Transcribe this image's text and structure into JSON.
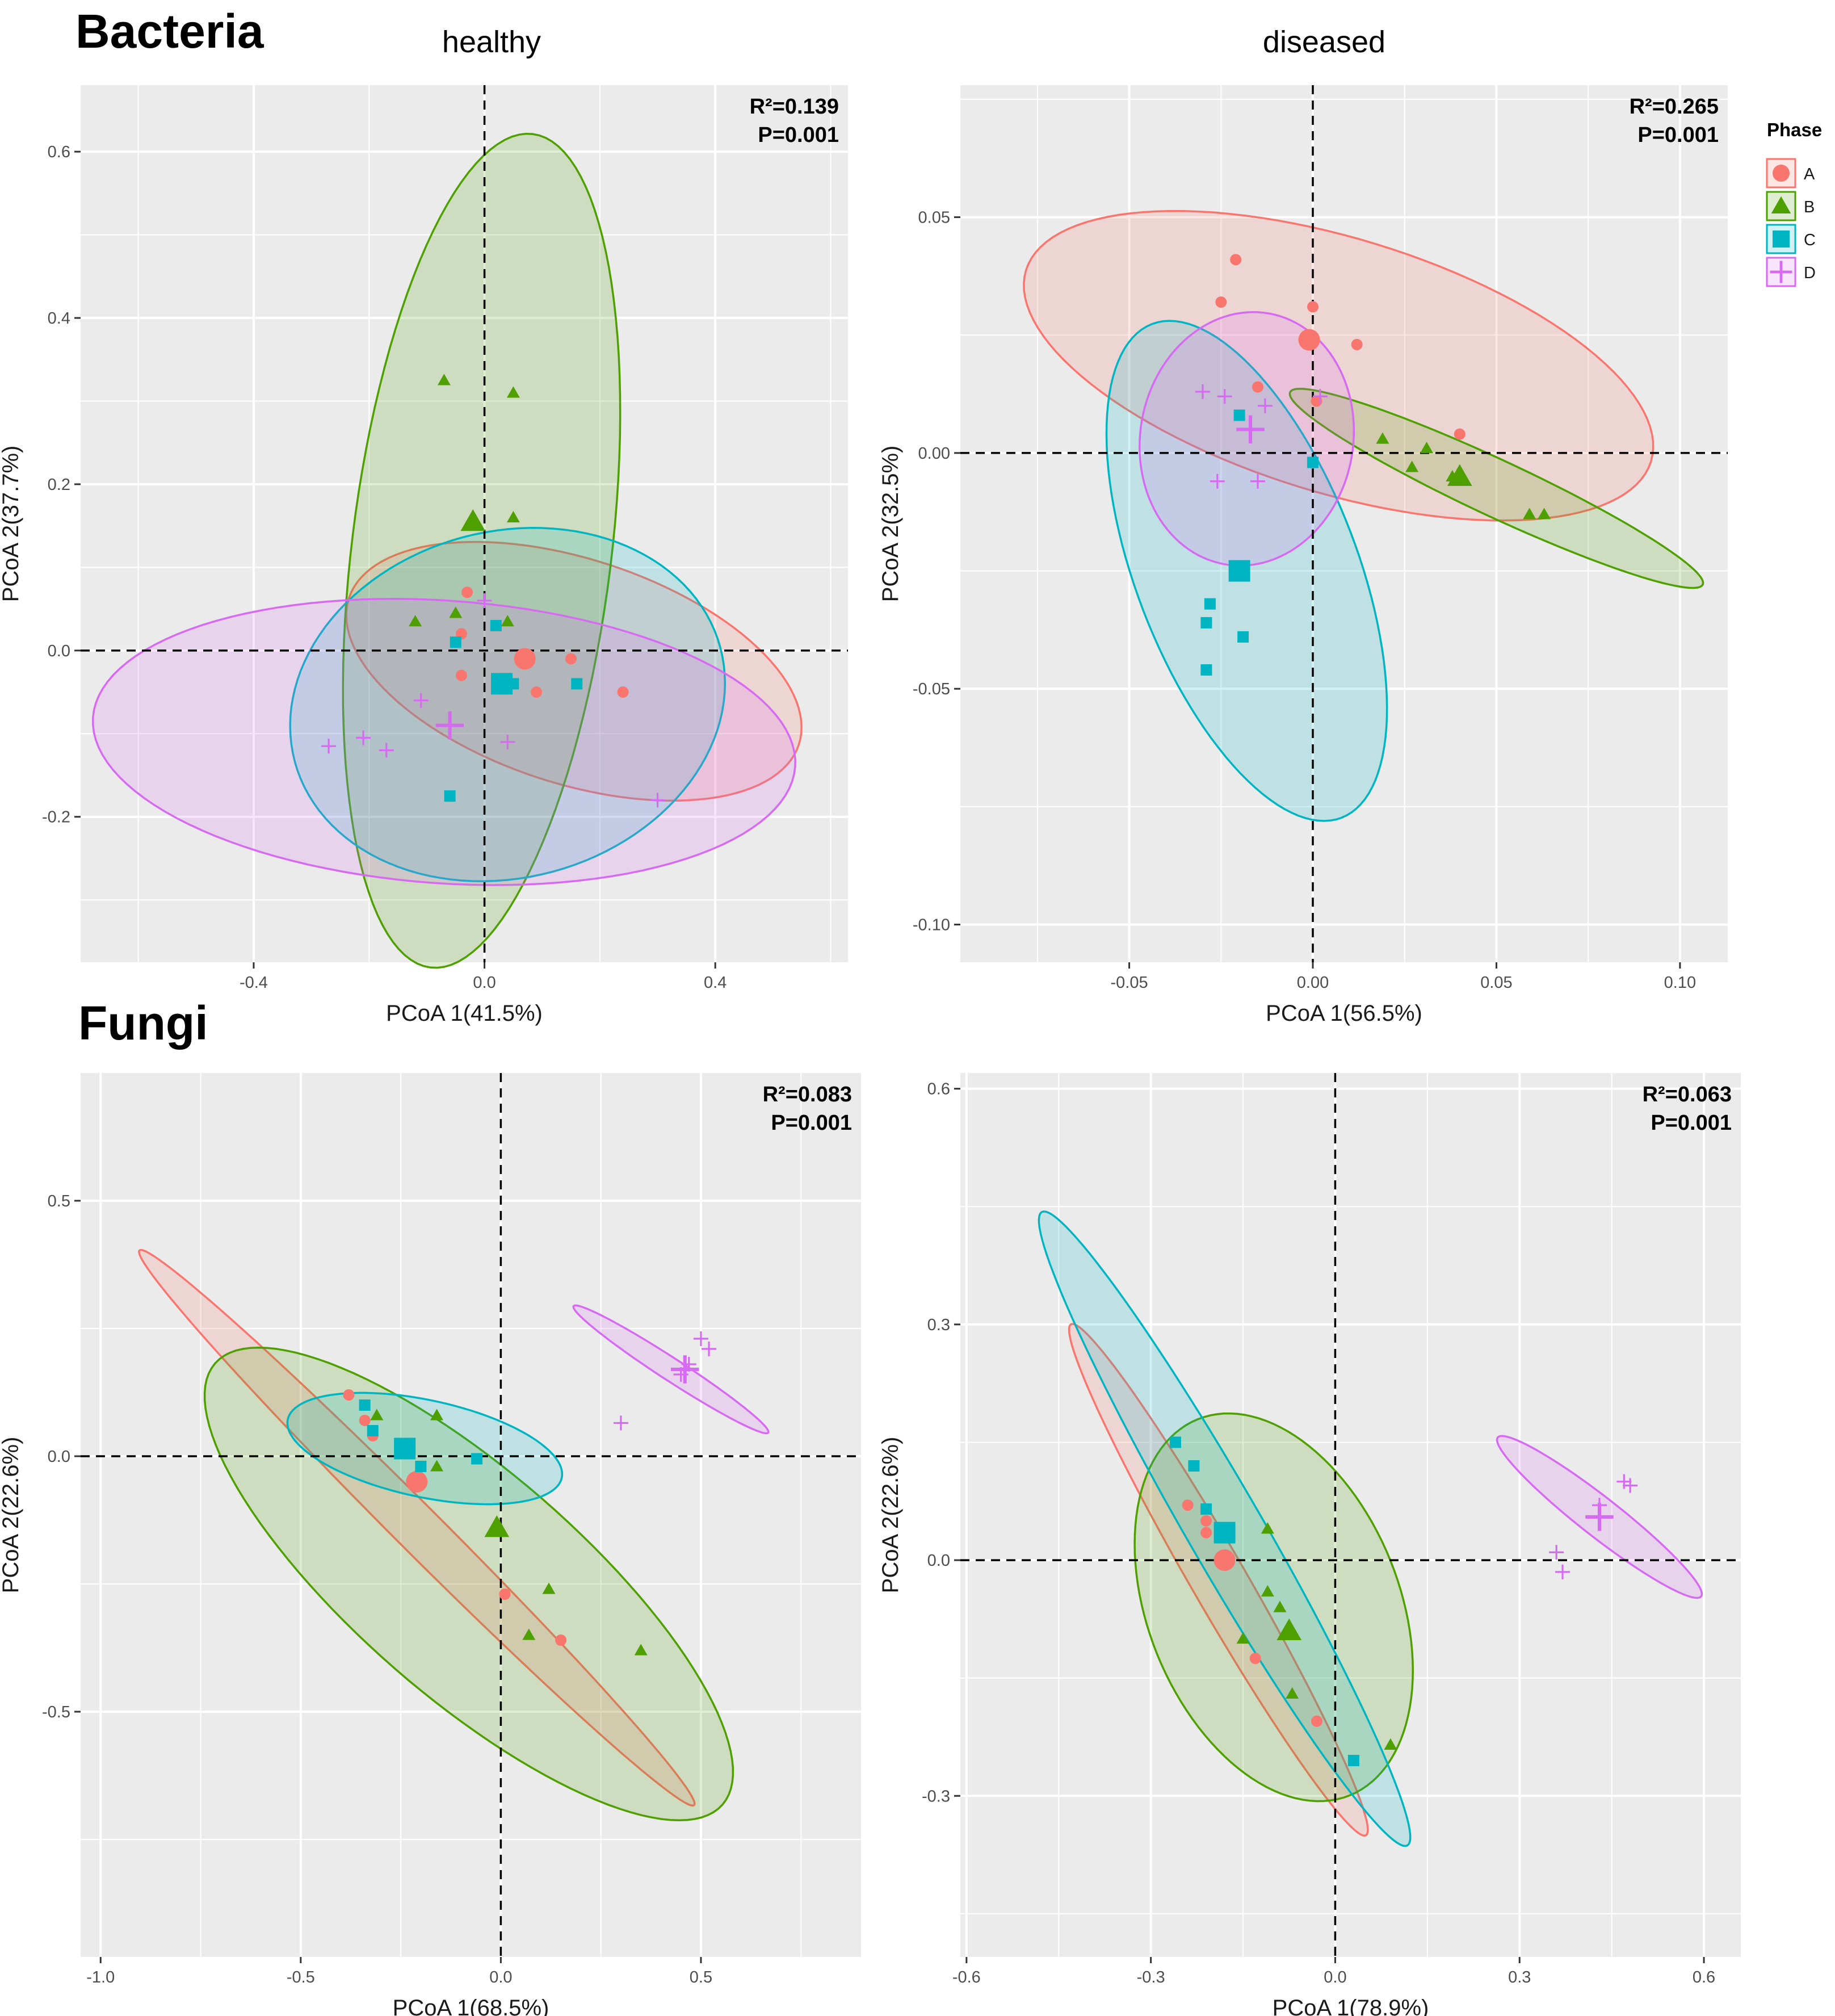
{
  "figure": {
    "section_titles": [
      "Bacteria",
      "Fungi"
    ],
    "column_titles": [
      "healthy",
      "diseased"
    ]
  },
  "legend": {
    "title": "Phase",
    "items": [
      {
        "label": "A",
        "color": "#F8766D",
        "shape": "circle"
      },
      {
        "label": "B",
        "color": "#4DA000",
        "shape": "triangle"
      },
      {
        "label": "C",
        "color": "#00B5C2",
        "shape": "square"
      },
      {
        "label": "D",
        "color": "#D66BF1",
        "shape": "cross"
      }
    ]
  },
  "chart_data": [
    {
      "type": "scatter",
      "panel": "bacteria-healthy",
      "title": "",
      "xlabel": "PCoA 1(41.5%)",
      "ylabel": "PCoA 2(37.7%)",
      "stat_r2": "R²=0.139",
      "stat_p": "P=0.001",
      "xlim": [
        -0.7,
        0.63
      ],
      "ylim": [
        -0.375,
        0.68
      ],
      "xticks": [
        -0.4,
        0.0,
        0.4
      ],
      "xtick_labels": [
        "-0.4",
        "0.0",
        "0.4"
      ],
      "yticks": [
        -0.2,
        0.0,
        0.2,
        0.4,
        0.6
      ],
      "ytick_labels": [
        "-0.2",
        "0.0",
        "0.2",
        "0.4",
        "0.6"
      ],
      "series": [
        {
          "name": "A",
          "points": [
            [
              -0.03,
              0.07
            ],
            [
              -0.04,
              0.02
            ],
            [
              -0.04,
              -0.03
            ],
            [
              0.09,
              -0.05
            ],
            [
              0.15,
              -0.01
            ],
            [
              0.24,
              -0.05
            ]
          ],
          "centroid": [
            0.07,
            -0.01
          ],
          "ellipse": {
            "cx": 0.155,
            "cy": -0.025,
            "rx": 0.41,
            "ry": 0.135,
            "angle": -18
          }
        },
        {
          "name": "B",
          "points": [
            [
              -0.07,
              0.325
            ],
            [
              0.05,
              0.31
            ],
            [
              0.05,
              0.16
            ],
            [
              -0.12,
              0.035
            ],
            [
              -0.05,
              0.045
            ],
            [
              0.04,
              0.035
            ]
          ],
          "centroid": [
            -0.02,
            0.155
          ],
          "ellipse": {
            "cx": -0.005,
            "cy": 0.12,
            "rx": 0.225,
            "ry": 0.505,
            "angle": -7
          }
        },
        {
          "name": "C",
          "points": [
            [
              0.02,
              0.03
            ],
            [
              -0.05,
              0.01
            ],
            [
              0.16,
              -0.04
            ],
            [
              0.05,
              -0.04
            ],
            [
              -0.06,
              -0.175
            ]
          ],
          "centroid": [
            0.03,
            -0.04
          ],
          "ellipse": {
            "cx": 0.04,
            "cy": -0.065,
            "rx": 0.3,
            "ry": 0.265,
            "angle": -75
          }
        },
        {
          "name": "D",
          "points": [
            [
              0.0,
              0.06
            ],
            [
              -0.11,
              -0.06
            ],
            [
              -0.27,
              -0.115
            ],
            [
              -0.21,
              -0.105
            ],
            [
              -0.17,
              -0.12
            ],
            [
              0.04,
              -0.11
            ],
            [
              0.3,
              -0.18
            ]
          ],
          "centroid": [
            -0.06,
            -0.09
          ],
          "ellipse": {
            "cx": -0.07,
            "cy": -0.11,
            "rx": 0.61,
            "ry": 0.17,
            "angle": -4
          }
        }
      ]
    },
    {
      "type": "scatter",
      "panel": "bacteria-diseased",
      "title": "",
      "xlabel": "PCoA 1(56.5%)",
      "ylabel": "PCoA 2(32.5%)",
      "stat_r2": "R²=0.265",
      "stat_p": "P=0.001",
      "xlim": [
        -0.096,
        0.113
      ],
      "ylim": [
        -0.108,
        0.078
      ],
      "xticks": [
        -0.05,
        0.0,
        0.05,
        0.1
      ],
      "xtick_labels": [
        "-0.05",
        "0.00",
        "0.05",
        "0.10"
      ],
      "yticks": [
        -0.1,
        -0.05,
        0.0,
        0.05
      ],
      "ytick_labels": [
        "-0.10",
        "-0.05",
        "0.00",
        "0.05"
      ],
      "series": [
        {
          "name": "A",
          "points": [
            [
              -0.021,
              0.041
            ],
            [
              -0.025,
              0.032
            ],
            [
              0.0,
              0.031
            ],
            [
              0.012,
              0.023
            ],
            [
              -0.015,
              0.014
            ],
            [
              0.001,
              0.011
            ],
            [
              0.04,
              0.004
            ]
          ],
          "centroid": [
            -0.001,
            0.024
          ],
          "ellipse": {
            "cx": 0.007,
            "cy": 0.0185,
            "rx": 0.089,
            "ry": 0.027,
            "angle": -17
          }
        },
        {
          "name": "B",
          "points": [
            [
              0.019,
              0.003
            ],
            [
              0.031,
              0.001
            ],
            [
              0.027,
              -0.003
            ],
            [
              0.038,
              -0.005
            ],
            [
              0.059,
              -0.013
            ],
            [
              0.063,
              -0.013
            ]
          ],
          "centroid": [
            0.04,
            -0.005
          ],
          "ellipse": {
            "cx": 0.05,
            "cy": -0.0075,
            "rx": 0.062,
            "ry": 0.006,
            "angle": -25
          }
        },
        {
          "name": "C",
          "points": [
            [
              -0.02,
              0.008
            ],
            [
              0.0,
              -0.002
            ],
            [
              -0.028,
              -0.032
            ],
            [
              -0.029,
              -0.036
            ],
            [
              -0.019,
              -0.039
            ],
            [
              -0.029,
              -0.046
            ]
          ],
          "centroid": [
            -0.02,
            -0.025
          ],
          "ellipse": {
            "cx": -0.018,
            "cy": -0.025,
            "rx": 0.072,
            "ry": 0.0235,
            "angle": -69
          }
        },
        {
          "name": "D",
          "points": [
            [
              -0.03,
              0.013
            ],
            [
              -0.024,
              0.012
            ],
            [
              -0.013,
              0.01
            ],
            [
              -0.026,
              -0.006
            ],
            [
              -0.015,
              -0.006
            ],
            [
              0.002,
              0.012
            ]
          ],
          "centroid": [
            -0.017,
            0.005
          ],
          "ellipse": {
            "cx": -0.018,
            "cy": 0.003,
            "rx": 0.029,
            "ry": 0.027,
            "angle": -10
          }
        }
      ]
    },
    {
      "type": "scatter",
      "panel": "fungi-healthy",
      "title": "",
      "xlabel": "PCoA 1(68.5%)",
      "ylabel": "PCoA 2(22.6%)",
      "stat_r2": "R²=0.083",
      "stat_p": "P=0.001",
      "xlim": [
        -1.05,
        0.9
      ],
      "ylim": [
        -0.98,
        0.75
      ],
      "xticks": [
        -1.0,
        -0.5,
        0.0,
        0.5
      ],
      "xtick_labels": [
        "-1.0",
        "-0.5",
        "0.0",
        "0.5"
      ],
      "yticks": [
        -0.5,
        0.0,
        0.5
      ],
      "ytick_labels": [
        "-0.5",
        "0.0",
        "0.5"
      ],
      "series": [
        {
          "name": "A",
          "points": [
            [
              -0.38,
              0.12
            ],
            [
              -0.34,
              0.07
            ],
            [
              -0.32,
              0.04
            ],
            [
              0.01,
              -0.27
            ],
            [
              0.15,
              -0.36
            ]
          ],
          "centroid": [
            -0.21,
            -0.05
          ],
          "ellipse": {
            "cx": -0.21,
            "cy": -0.14,
            "rx": 0.98,
            "ry": 0.045,
            "angle": -45
          }
        },
        {
          "name": "B",
          "points": [
            [
              -0.31,
              0.08
            ],
            [
              -0.16,
              0.08
            ],
            [
              -0.16,
              -0.02
            ],
            [
              0.12,
              -0.26
            ],
            [
              0.07,
              -0.35
            ],
            [
              0.35,
              -0.38
            ]
          ],
          "centroid": [
            -0.01,
            -0.14
          ],
          "ellipse": {
            "cx": -0.08,
            "cy": -0.25,
            "rx": 0.84,
            "ry": 0.22,
            "angle": -41
          }
        },
        {
          "name": "C",
          "points": [
            [
              -0.34,
              0.1
            ],
            [
              -0.32,
              0.05
            ],
            [
              -0.2,
              -0.02
            ],
            [
              -0.06,
              -0.005
            ]
          ],
          "centroid": [
            -0.24,
            0.015
          ],
          "ellipse": {
            "cx": -0.19,
            "cy": 0.015,
            "rx": 0.35,
            "ry": 0.095,
            "angle": -12
          }
        },
        {
          "name": "D",
          "points": [
            [
              0.3,
              0.065
            ],
            [
              0.45,
              0.16
            ],
            [
              0.47,
              0.18
            ],
            [
              0.52,
              0.21
            ],
            [
              0.5,
              0.23
            ]
          ],
          "centroid": [
            0.46,
            0.17
          ],
          "ellipse": {
            "cx": 0.425,
            "cy": 0.17,
            "rx": 0.29,
            "ry": 0.022,
            "angle": -33
          }
        }
      ]
    },
    {
      "type": "scatter",
      "panel": "fungi-diseased",
      "title": "",
      "xlabel": "PCoA 1(78.9%)",
      "ylabel": "PCoA 2(22.6%)",
      "stat_r2": "R²=0.063",
      "stat_p": "P=0.001",
      "xlim": [
        -0.61,
        0.66
      ],
      "ylim": [
        -0.505,
        0.62
      ],
      "xticks": [
        -0.6,
        -0.3,
        0.0,
        0.3,
        0.6
      ],
      "xtick_labels": [
        "-0.6",
        "-0.3",
        "0.0",
        "0.3",
        "0.6"
      ],
      "yticks": [
        -0.3,
        0.0,
        0.3,
        0.6
      ],
      "ytick_labels": [
        "-0.3",
        "0.0",
        "0.3",
        "0.6"
      ],
      "series": [
        {
          "name": "A",
          "points": [
            [
              -0.26,
              0.15
            ],
            [
              -0.24,
              0.07
            ],
            [
              -0.21,
              0.05
            ],
            [
              -0.21,
              0.035
            ],
            [
              -0.13,
              -0.125
            ],
            [
              -0.03,
              -0.205
            ]
          ],
          "centroid": [
            -0.18,
            0.0
          ],
          "ellipse": {
            "cx": -0.19,
            "cy": -0.025,
            "rx": 0.48,
            "ry": 0.035,
            "angle": -60
          }
        },
        {
          "name": "B",
          "points": [
            [
              -0.11,
              0.04
            ],
            [
              -0.11,
              -0.04
            ],
            [
              -0.09,
              -0.06
            ],
            [
              -0.15,
              -0.1
            ],
            [
              -0.07,
              -0.17
            ],
            [
              0.09,
              -0.235
            ]
          ],
          "centroid": [
            -0.075,
            -0.09
          ],
          "ellipse": {
            "cx": -0.1,
            "cy": -0.06,
            "rx": 0.33,
            "ry": 0.16,
            "angle": -68
          }
        },
        {
          "name": "C",
          "points": [
            [
              -0.26,
              0.15
            ],
            [
              -0.23,
              0.12
            ],
            [
              -0.21,
              0.065
            ],
            [
              0.03,
              -0.255
            ]
          ],
          "centroid": [
            -0.18,
            0.035
          ],
          "ellipse": {
            "cx": -0.18,
            "cy": 0.04,
            "rx": 0.595,
            "ry": 0.048,
            "angle": -60
          }
        },
        {
          "name": "D",
          "points": [
            [
              0.36,
              0.01
            ],
            [
              0.37,
              -0.015
            ],
            [
              0.43,
              0.07
            ],
            [
              0.47,
              0.1
            ],
            [
              0.48,
              0.095
            ]
          ],
          "centroid": [
            0.43,
            0.055
          ],
          "ellipse": {
            "cx": 0.43,
            "cy": 0.055,
            "rx": 0.21,
            "ry": 0.025,
            "angle": -38
          }
        }
      ]
    }
  ]
}
